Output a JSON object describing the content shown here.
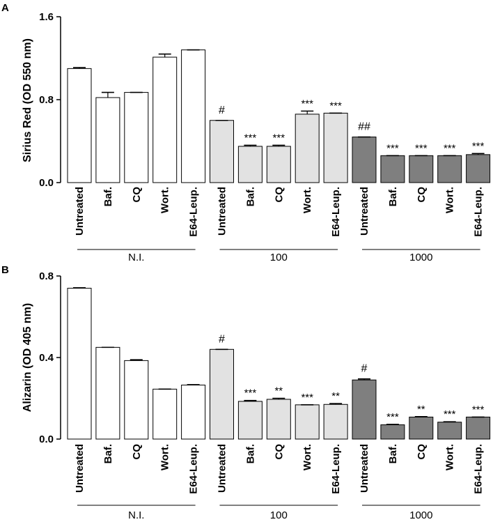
{
  "colors": {
    "N.I.": "#ffffff",
    "100": "#e2e2e2",
    "1000": "#7f7f7f",
    "stroke": "#000000"
  },
  "chart_data": [
    {
      "panel": "A",
      "type": "bar",
      "ylabel": "Sirius Red (OD 550 nm)",
      "ylim": [
        0,
        1.6
      ],
      "yticks": [
        "0.0",
        "0.8",
        "1.6"
      ],
      "categories": [
        "Untreated",
        "Baf.",
        "CQ",
        "Wort.",
        "E64-Leup.",
        "Untreated",
        "Baf.",
        "CQ",
        "Wort.",
        "E64-Leup.",
        "Untreated",
        "Baf.",
        "CQ",
        "Wort.",
        "E64-Leup."
      ],
      "groups": [
        {
          "name": "N.I.",
          "start": 0,
          "end": 4
        },
        {
          "name": "100",
          "start": 5,
          "end": 9
        },
        {
          "name": "1000",
          "start": 10,
          "end": 14
        }
      ],
      "values": [
        1.1,
        0.82,
        0.87,
        1.21,
        1.28,
        0.6,
        0.35,
        0.35,
        0.66,
        0.67,
        0.44,
        0.26,
        0.26,
        0.26,
        0.27
      ],
      "errors": [
        0.01,
        0.05,
        0.0,
        0.03,
        0.0,
        0.0,
        0.01,
        0.01,
        0.03,
        0.0,
        0.0,
        0.0,
        0.0,
        0.0,
        0.01
      ],
      "annotations": [
        "",
        "",
        "",
        "",
        "",
        "#",
        "***",
        "***",
        "***",
        "***",
        "##",
        "***",
        "***",
        "***",
        "***"
      ]
    },
    {
      "panel": "B",
      "type": "bar",
      "ylabel": "Alizarin (OD 405 nm)",
      "ylim": [
        0,
        0.8
      ],
      "yticks": [
        "0.0",
        "0.4",
        "0.8"
      ],
      "categories": [
        "Untreated",
        "Baf.",
        "CQ",
        "Wort.",
        "E64-Leup.",
        "Untreated",
        "Baf.",
        "CQ",
        "Wort.",
        "E64-Leup.",
        "Untreated",
        "Baf.",
        "CQ",
        "Wort.",
        "E64-Leup."
      ],
      "groups": [
        {
          "name": "N.I.",
          "start": 0,
          "end": 4
        },
        {
          "name": "100",
          "start": 5,
          "end": 9
        },
        {
          "name": "1000",
          "start": 10,
          "end": 14
        }
      ],
      "values": [
        0.74,
        0.45,
        0.385,
        0.245,
        0.265,
        0.44,
        0.185,
        0.195,
        0.168,
        0.17,
        0.29,
        0.07,
        0.108,
        0.083,
        0.108
      ],
      "errors": [
        0.002,
        0.0,
        0.004,
        0.0,
        0.002,
        0.0,
        0.004,
        0.005,
        0.0,
        0.004,
        0.005,
        0.002,
        0.002,
        0.002,
        0.0
      ],
      "annotations": [
        "",
        "",
        "",
        "",
        "",
        "#",
        "***",
        "**",
        "***",
        "**",
        "#",
        "***",
        "**",
        "***",
        "***"
      ]
    }
  ]
}
